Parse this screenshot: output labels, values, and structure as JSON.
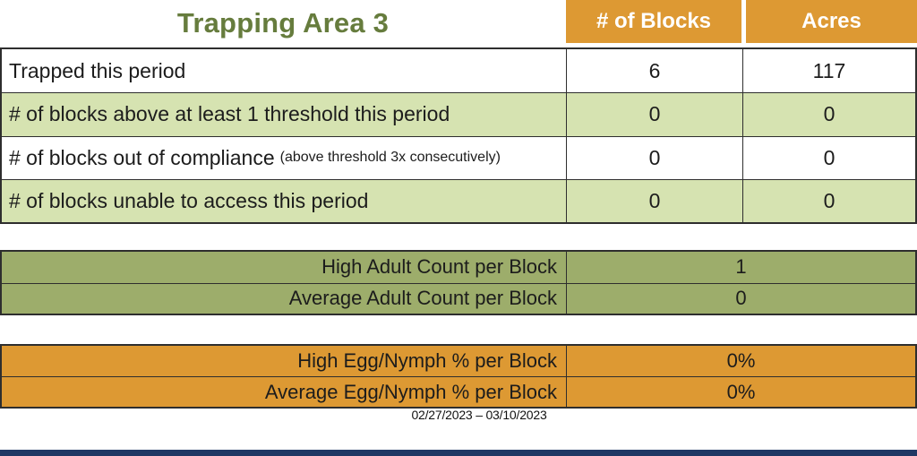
{
  "header": {
    "title": "Trapping Area 3"
  },
  "main_table": {
    "columns": [
      "# of Blocks",
      "Acres"
    ],
    "rows": [
      {
        "label": "Trapped this period",
        "note": "",
        "blocks": "6",
        "acres": "117"
      },
      {
        "label": "# of blocks above at least 1 threshold this period",
        "note": "",
        "blocks": "0",
        "acres": "0"
      },
      {
        "label": "# of blocks out of compliance",
        "note": "(above threshold 3x consecutively)",
        "blocks": "0",
        "acres": "0"
      },
      {
        "label": "# of blocks unable to access this period",
        "note": "",
        "blocks": "0",
        "acres": "0"
      }
    ]
  },
  "adult_table": {
    "rows": [
      {
        "label": "High Adult Count per Block",
        "value": "1"
      },
      {
        "label": "Average Adult Count per Block",
        "value": "0"
      }
    ]
  },
  "egg_table": {
    "rows": [
      {
        "label": "High Egg/Nymph % per Block",
        "value": "0%"
      },
      {
        "label": "Average Egg/Nymph % per Block",
        "value": "0%"
      }
    ]
  },
  "footer": {
    "date_range": "02/27/2023 – 03/10/2023"
  },
  "colors": {
    "accent_orange": "#DD9933",
    "light_green": "#D6E3B1",
    "olive_green": "#9DAD6B",
    "title_green": "#667C3D",
    "navy_bar": "#1F3864"
  }
}
